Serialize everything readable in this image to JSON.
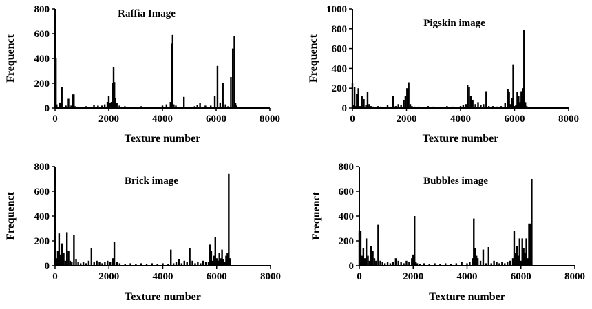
{
  "chart_data": [
    {
      "type": "bar",
      "title": "Raffia Image",
      "xlabel": "Texture number",
      "ylabel": "Frequenct",
      "xlim": [
        0,
        8000
      ],
      "ylim": [
        0,
        800
      ],
      "xticks": [
        "0",
        "2000",
        "4000",
        "6000",
        "8000"
      ],
      "yticks": [
        "0",
        "200",
        "400",
        "600",
        "800"
      ],
      "color": "#000000",
      "series": [
        {
          "x": [
            0,
            30,
            60,
            100,
            180,
            250,
            320,
            400,
            500,
            600,
            650,
            700,
            750,
            850,
            1000,
            1150,
            1300,
            1450,
            1600,
            1750,
            1850,
            1950,
            2000,
            2050,
            2100,
            2150,
            2180,
            2210,
            2250,
            2300,
            2400,
            2600,
            2800,
            3000,
            3200,
            3400,
            3600,
            3800,
            4000,
            4150,
            4300,
            4340,
            4380,
            4420,
            4500,
            4650,
            4800,
            5000,
            5200,
            5300,
            5400,
            5600,
            5800,
            5950,
            6050,
            6150,
            6250,
            6350,
            6450,
            6550,
            6620,
            6680,
            6720,
            6760
          ],
          "values": [
            400,
            400,
            30,
            10,
            45,
            170,
            10,
            20,
            75,
            20,
            110,
            110,
            15,
            10,
            10,
            15,
            10,
            25,
            20,
            20,
            30,
            50,
            95,
            40,
            50,
            200,
            330,
            210,
            80,
            40,
            20,
            15,
            10,
            10,
            15,
            10,
            10,
            10,
            20,
            30,
            50,
            520,
            590,
            30,
            20,
            10,
            90,
            10,
            15,
            25,
            40,
            20,
            20,
            95,
            340,
            45,
            200,
            30,
            15,
            250,
            480,
            580,
            40,
            20
          ]
        }
      ]
    },
    {
      "type": "bar",
      "title": "Pigskin image",
      "xlabel": "Texture number",
      "ylabel": "Frequenct",
      "xlim": [
        0,
        8000
      ],
      "ylim": [
        0,
        1000
      ],
      "xticks": [
        "0",
        "2000",
        "4000",
        "6000",
        "8000"
      ],
      "yticks": [
        "0",
        "200",
        "400",
        "600",
        "800",
        "1000"
      ],
      "color": "#000000",
      "series": [
        {
          "x": [
            0,
            40,
            80,
            120,
            160,
            220,
            280,
            350,
            420,
            500,
            560,
            620,
            680,
            760,
            850,
            950,
            1050,
            1200,
            1300,
            1400,
            1500,
            1600,
            1700,
            1800,
            1900,
            1960,
            2020,
            2080,
            2140,
            2200,
            2300,
            2450,
            2600,
            2800,
            3000,
            3200,
            3400,
            3500,
            3700,
            3900,
            4000,
            4100,
            4200,
            4260,
            4320,
            4380,
            4450,
            4550,
            4650,
            4750,
            4850,
            4950,
            5050,
            5200,
            5350,
            5500,
            5650,
            5750,
            5800,
            5850,
            5900,
            5950,
            6000,
            6050,
            6100,
            6150,
            6200,
            6250,
            6300,
            6350,
            6400,
            6450
          ],
          "values": [
            250,
            30,
            210,
            20,
            140,
            200,
            20,
            120,
            90,
            30,
            160,
            40,
            20,
            15,
            10,
            20,
            15,
            10,
            30,
            10,
            120,
            20,
            40,
            30,
            80,
            120,
            200,
            260,
            40,
            20,
            15,
            15,
            10,
            20,
            15,
            10,
            10,
            20,
            15,
            10,
            20,
            30,
            40,
            230,
            210,
            120,
            80,
            40,
            60,
            30,
            40,
            170,
            20,
            20,
            15,
            20,
            50,
            190,
            160,
            40,
            100,
            440,
            20,
            30,
            160,
            120,
            60,
            170,
            200,
            790,
            60,
            20
          ]
        }
      ]
    },
    {
      "type": "bar",
      "title": "Brick image",
      "xlabel": "Texture number",
      "ylabel": "Frequenct",
      "xlim": [
        0,
        8000
      ],
      "ylim": [
        0,
        800
      ],
      "xticks": [
        "0",
        "2000",
        "4000",
        "6000",
        "8000"
      ],
      "yticks": [
        "0",
        "200",
        "400",
        "600",
        "800"
      ],
      "color": "#000000",
      "series": [
        {
          "x": [
            0,
            50,
            100,
            150,
            200,
            260,
            320,
            380,
            440,
            500,
            560,
            620,
            700,
            780,
            860,
            950,
            1050,
            1150,
            1250,
            1350,
            1450,
            1550,
            1650,
            1750,
            1850,
            1950,
            2050,
            2150,
            2200,
            2300,
            2400,
            2600,
            2800,
            3000,
            3200,
            3400,
            3600,
            3800,
            4000,
            4200,
            4300,
            4400,
            4500,
            4600,
            4700,
            4800,
            4900,
            5000,
            5100,
            5200,
            5300,
            5400,
            5500,
            5600,
            5700,
            5750,
            5800,
            5850,
            5900,
            5950,
            6000,
            6050,
            6100,
            6150,
            6200,
            6250,
            6300,
            6350,
            6400,
            6450,
            6500
          ],
          "values": [
            140,
            60,
            120,
            260,
            90,
            180,
            100,
            40,
            270,
            120,
            40,
            30,
            250,
            50,
            30,
            20,
            30,
            20,
            40,
            140,
            30,
            40,
            30,
            20,
            30,
            40,
            30,
            60,
            190,
            30,
            20,
            15,
            20,
            15,
            20,
            15,
            20,
            15,
            20,
            15,
            130,
            20,
            30,
            50,
            20,
            40,
            30,
            140,
            40,
            20,
            30,
            20,
            40,
            30,
            30,
            170,
            120,
            40,
            80,
            230,
            60,
            40,
            100,
            60,
            130,
            50,
            30,
            80,
            100,
            740,
            60
          ]
        }
      ]
    },
    {
      "type": "bar",
      "title": "Bubbles image",
      "xlabel": "Texture number",
      "ylabel": "Frequenct",
      "xlim": [
        0,
        8000
      ],
      "ylim": [
        0,
        800
      ],
      "xticks": [
        "0",
        "2000",
        "4000",
        "6000",
        "8000"
      ],
      "yticks": [
        "0",
        "200",
        "400",
        "600",
        "800"
      ],
      "color": "#000000",
      "series": [
        {
          "x": [
            0,
            50,
            100,
            150,
            200,
            260,
            320,
            380,
            440,
            500,
            560,
            620,
            700,
            780,
            860,
            950,
            1050,
            1150,
            1250,
            1350,
            1450,
            1550,
            1650,
            1750,
            1850,
            1950,
            2000,
            2050,
            2100,
            2150,
            2250,
            2400,
            2600,
            2800,
            3000,
            3200,
            3400,
            3600,
            3800,
            4000,
            4100,
            4200,
            4250,
            4300,
            4350,
            4400,
            4500,
            4600,
            4700,
            4800,
            4900,
            5000,
            5100,
            5200,
            5300,
            5400,
            5500,
            5600,
            5700,
            5750,
            5800,
            5850,
            5900,
            5950,
            6000,
            6050,
            6100,
            6150,
            6200,
            6250,
            6300,
            6350,
            6400
          ],
          "values": [
            280,
            280,
            80,
            140,
            60,
            220,
            80,
            40,
            160,
            120,
            60,
            40,
            330,
            40,
            30,
            20,
            30,
            20,
            30,
            60,
            40,
            30,
            20,
            40,
            30,
            60,
            90,
            400,
            30,
            20,
            15,
            20,
            15,
            20,
            15,
            20,
            15,
            20,
            30,
            20,
            30,
            60,
            380,
            140,
            80,
            60,
            40,
            130,
            20,
            150,
            20,
            40,
            30,
            20,
            30,
            20,
            30,
            40,
            60,
            280,
            100,
            160,
            80,
            220,
            40,
            220,
            140,
            100,
            220,
            60,
            340,
            340,
            700
          ]
        }
      ]
    }
  ]
}
